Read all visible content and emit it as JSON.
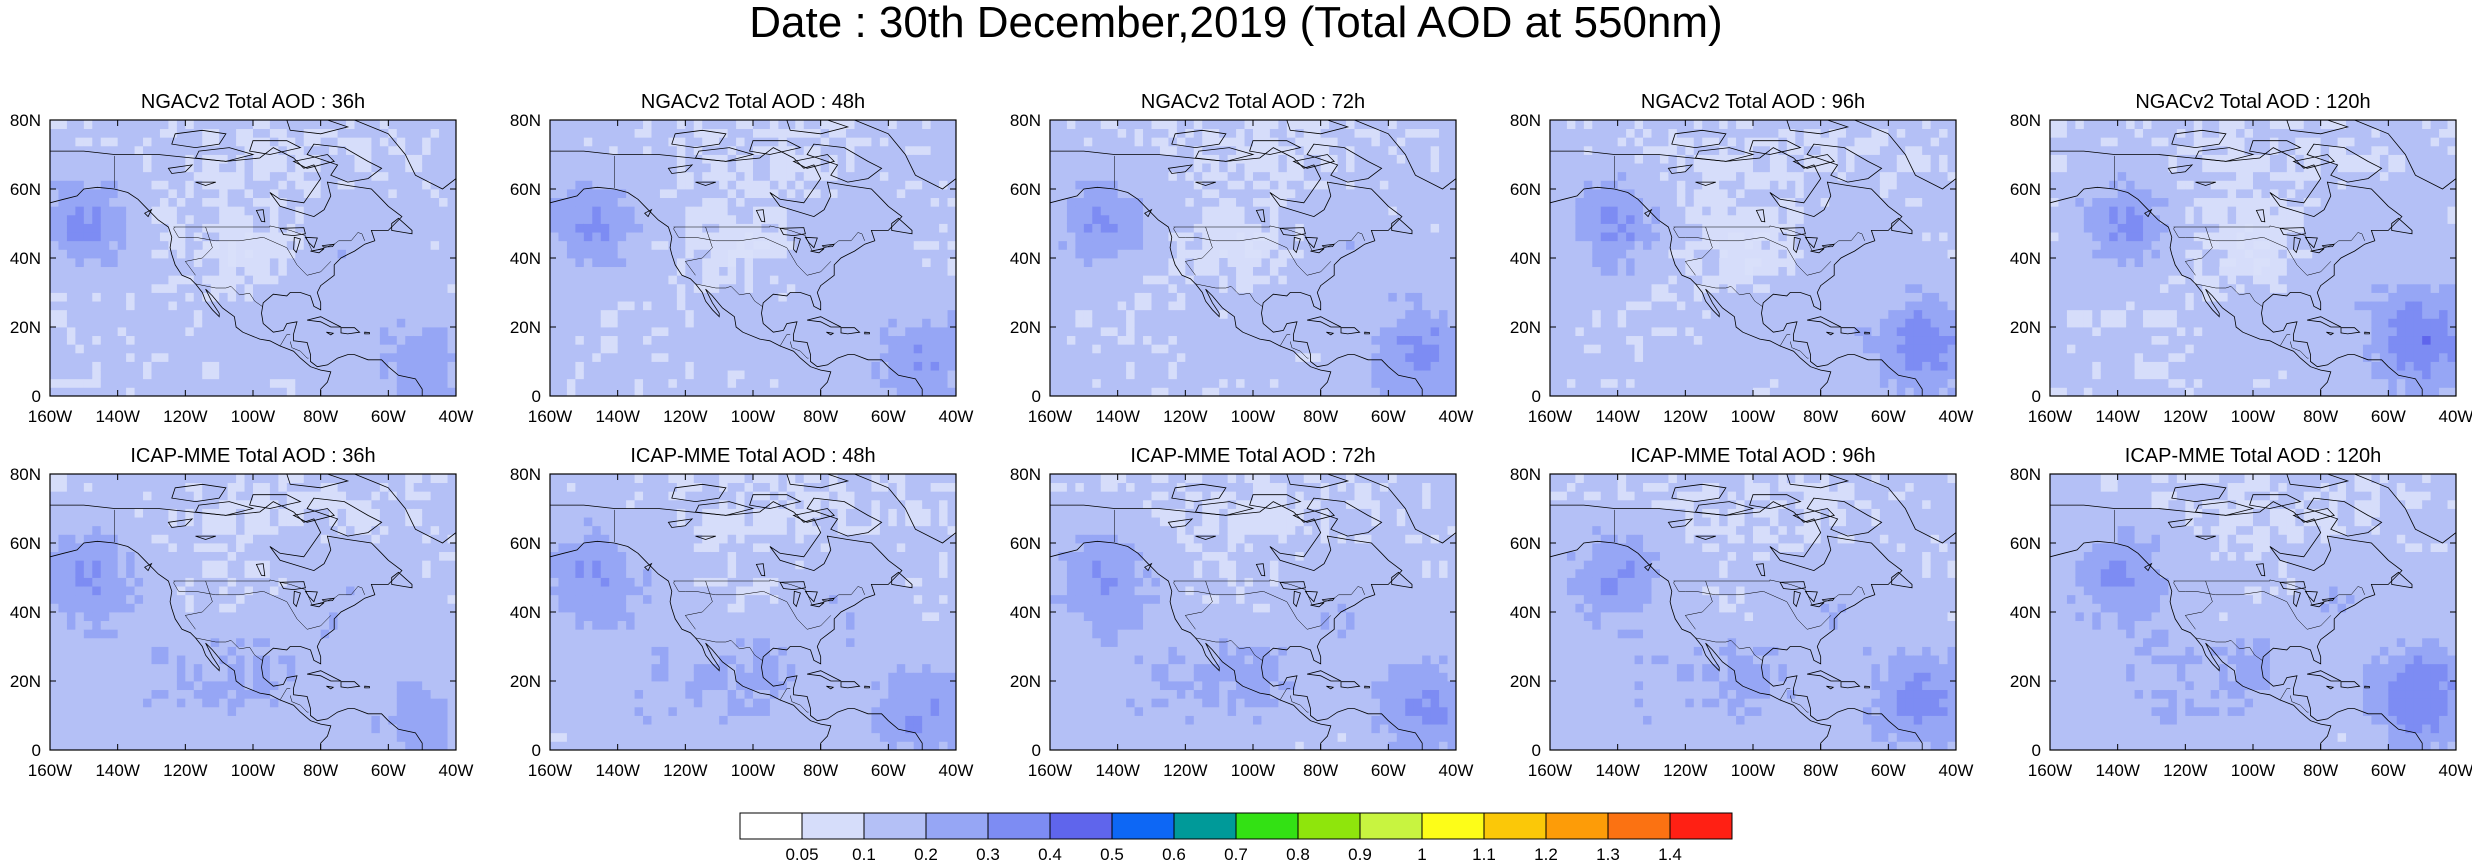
{
  "title": "Date : 30th December,2019 (Total AOD at 550nm)",
  "x_tick_labels": [
    "160W",
    "140W",
    "120W",
    "100W",
    "80W",
    "60W",
    "40W"
  ],
  "y_tick_labels": [
    "0",
    "20N",
    "40N",
    "60N",
    "80N"
  ],
  "panels": [
    {
      "title": "NGACv2 Total AOD : 36h",
      "model": "NGACv2",
      "lead": "36h"
    },
    {
      "title": "NGACv2 Total AOD : 48h",
      "model": "NGACv2",
      "lead": "48h"
    },
    {
      "title": "NGACv2 Total AOD : 72h",
      "model": "NGACv2",
      "lead": "72h"
    },
    {
      "title": "NGACv2 Total AOD : 96h",
      "model": "NGACv2",
      "lead": "96h"
    },
    {
      "title": "NGACv2 Total AOD : 120h",
      "model": "NGACv2",
      "lead": "120h"
    },
    {
      "title": "ICAP-MME Total AOD : 36h",
      "model": "ICAP-MME",
      "lead": "36h"
    },
    {
      "title": "ICAP-MME Total AOD : 48h",
      "model": "ICAP-MME",
      "lead": "48h"
    },
    {
      "title": "ICAP-MME Total AOD : 72h",
      "model": "ICAP-MME",
      "lead": "72h"
    },
    {
      "title": "ICAP-MME Total AOD : 96h",
      "model": "ICAP-MME",
      "lead": "96h"
    },
    {
      "title": "ICAP-MME Total AOD : 120h",
      "model": "ICAP-MME",
      "lead": "120h"
    }
  ],
  "colorbar": {
    "labels": [
      "0.05",
      "0.1",
      "0.2",
      "0.3",
      "0.4",
      "0.5",
      "0.6",
      "0.7",
      "0.8",
      "0.9",
      "1",
      "1.1",
      "1.2",
      "1.3",
      "1.4"
    ],
    "colors": [
      "#ffffff",
      "#d6ddfa",
      "#b4c0f6",
      "#96a6f5",
      "#7d8cf3",
      "#5f65ec",
      "#0d67f5",
      "#009a99",
      "#33e114",
      "#8fe50c",
      "#c8f440",
      "#fdfd18",
      "#fbc808",
      "#fd9c08",
      "#fb7212",
      "#ff2014"
    ]
  },
  "map_colors": {
    "ocean_background": "#d9e0fa",
    "land_background": "#ffffff",
    "low_aod": "#c4cdf7",
    "high_aod": "#8e9df2"
  }
}
